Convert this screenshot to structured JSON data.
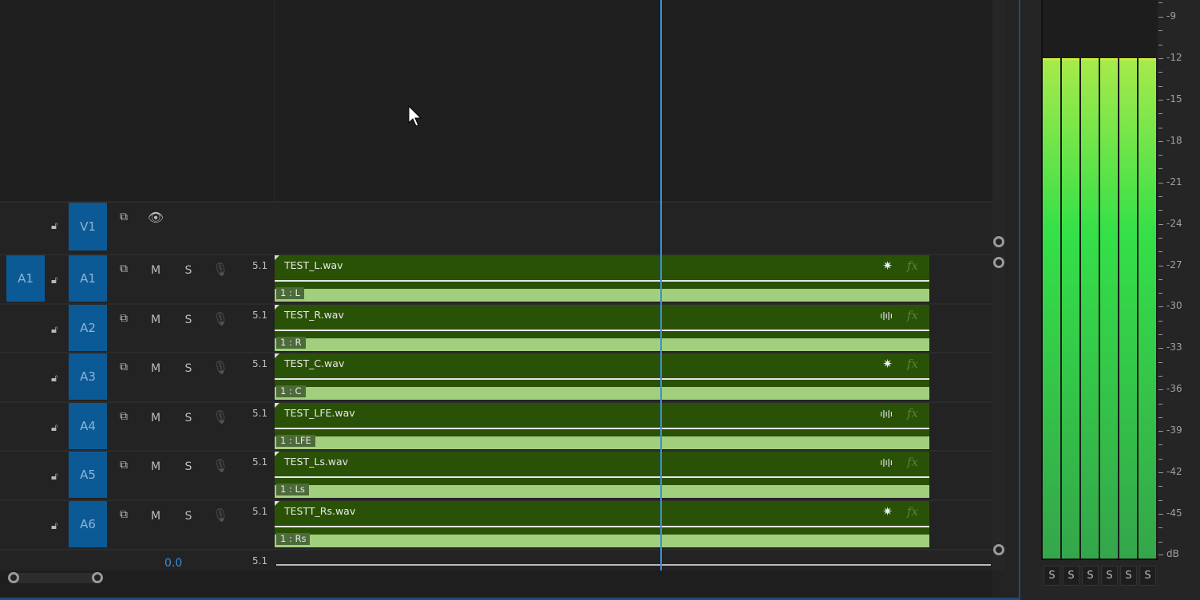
{
  "video_track": {
    "name": "V1"
  },
  "audio_tracks": [
    {
      "source": "A1",
      "name": "A1",
      "channels": "5.1",
      "clip": "TEST_L.wav",
      "channel_label": "1 : L",
      "clip_icon": "sparkle-icon"
    },
    {
      "source": "",
      "name": "A2",
      "channels": "5.1",
      "clip": "TEST_R.wav",
      "channel_label": "1 : R",
      "clip_icon": "waveform-icon"
    },
    {
      "source": "",
      "name": "A3",
      "channels": "5.1",
      "clip": "TEST_C.wav",
      "channel_label": "1 : C",
      "clip_icon": "sparkle-icon"
    },
    {
      "source": "",
      "name": "A4",
      "channels": "5.1",
      "clip": "TEST_LFE.wav",
      "channel_label": "1 : LFE",
      "clip_icon": "waveform-icon"
    },
    {
      "source": "",
      "name": "A5",
      "channels": "5.1",
      "clip": "TEST_Ls.wav",
      "channel_label": "1 : Ls",
      "clip_icon": "waveform-icon"
    },
    {
      "source": "",
      "name": "A6",
      "channels": "5.1",
      "clip": "TESTT_Rs.wav",
      "channel_label": "1 : Rs",
      "clip_icon": "sparkle-icon"
    }
  ],
  "track_buttons": {
    "mute": "M",
    "solo": "S",
    "fx": "fx"
  },
  "master": {
    "volume": "0.0",
    "channels": "5.1"
  },
  "meter": {
    "scale": [
      "-9",
      "-12",
      "-15",
      "-18",
      "-21",
      "-24",
      "-27",
      "-30",
      "-33",
      "-36",
      "-39",
      "-42",
      "-45",
      "dB"
    ],
    "levels_db": [
      -12,
      -12,
      -12,
      -12,
      -12,
      -12
    ],
    "solo_labels": [
      "S",
      "S",
      "S",
      "S",
      "S",
      "S"
    ]
  },
  "colors": {
    "clip": "#2a5207",
    "clip_bar": "#a2cf7d",
    "target": "#0b5a96",
    "playhead": "#3d8fd8"
  }
}
